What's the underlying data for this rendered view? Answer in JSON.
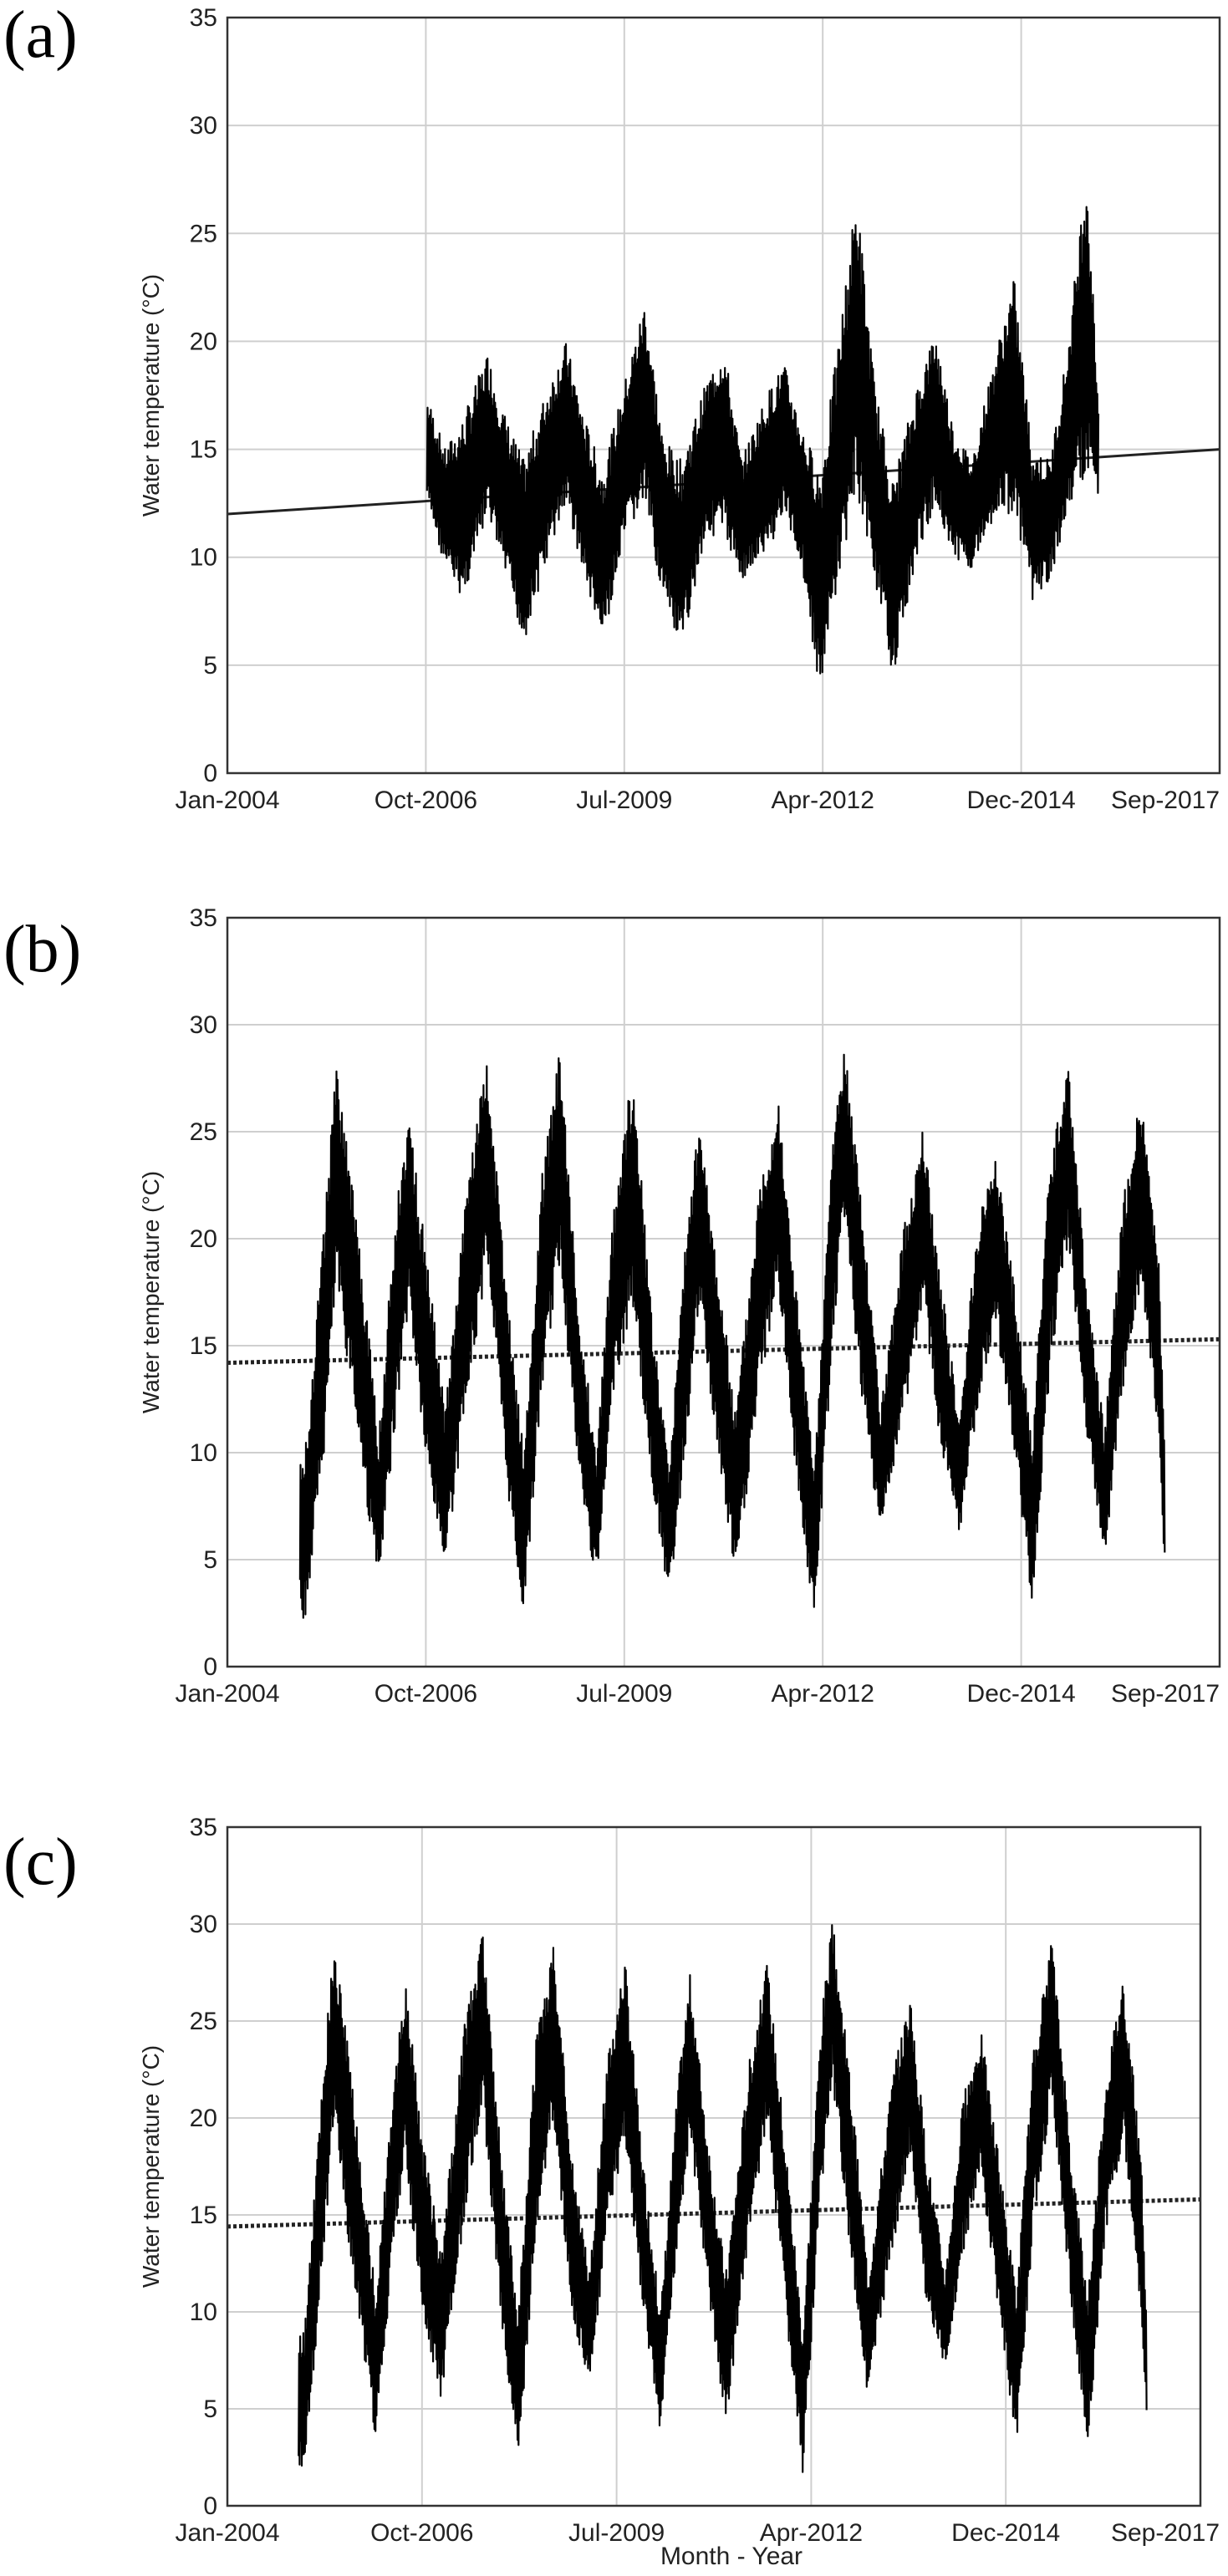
{
  "chart_data": [
    {
      "type": "scatter",
      "panel_label": "(a)",
      "ylabel": "Water temperature (°C)",
      "xlabel": "",
      "ylim": [
        0,
        35
      ],
      "yticks": [
        "0",
        "5",
        "10",
        "15",
        "20",
        "25",
        "30",
        "35"
      ],
      "xlim": [
        "2004-01",
        "2017-09"
      ],
      "xticks": [
        "Jan-2004",
        "Oct-2006",
        "Jul-2009",
        "Apr-2012",
        "Dec-2014",
        "Sep-2017"
      ],
      "grid": true,
      "trend": {
        "start": [
          "2004-01",
          12.0
        ],
        "end": [
          "2017-09",
          15.0
        ]
      },
      "series": [
        {
          "x_start": "2006-10",
          "x_end": "2016-01",
          "observations": [
            {
              "date": "2006-10",
              "min": 12.5,
              "max": 17.5
            },
            {
              "date": "2007-01",
              "min": 9.5,
              "max": 15.0
            },
            {
              "date": "2007-04",
              "min": 8.0,
              "max": 16.5
            },
            {
              "date": "2007-08",
              "min": 12.0,
              "max": 19.5
            },
            {
              "date": "2007-11",
              "min": 9.0,
              "max": 16.5
            },
            {
              "date": "2008-02",
              "min": 6.0,
              "max": 14.5
            },
            {
              "date": "2008-06",
              "min": 10.0,
              "max": 18.0
            },
            {
              "date": "2008-09",
              "min": 12.5,
              "max": 20.0
            },
            {
              "date": "2008-12",
              "min": 9.0,
              "max": 16.5
            },
            {
              "date": "2009-03",
              "min": 6.0,
              "max": 14.0
            },
            {
              "date": "2009-07",
              "min": 11.0,
              "max": 18.5
            },
            {
              "date": "2009-10",
              "min": 12.5,
              "max": 22.0
            },
            {
              "date": "2010-01",
              "min": 8.0,
              "max": 15.5
            },
            {
              "date": "2010-04",
              "min": 5.5,
              "max": 14.5
            },
            {
              "date": "2010-08",
              "min": 11.0,
              "max": 18.0
            },
            {
              "date": "2010-11",
              "min": 11.0,
              "max": 20.0
            },
            {
              "date": "2011-02",
              "min": 9.0,
              "max": 14.5
            },
            {
              "date": "2011-06",
              "min": 10.0,
              "max": 17.5
            },
            {
              "date": "2011-09",
              "min": 12.0,
              "max": 19.0
            },
            {
              "date": "2011-12",
              "min": 9.5,
              "max": 16.0
            },
            {
              "date": "2012-03",
              "min": 3.5,
              "max": 14.0
            },
            {
              "date": "2012-06",
              "min": 9.0,
              "max": 20.0
            },
            {
              "date": "2012-09",
              "min": 13.0,
              "max": 27.0
            },
            {
              "date": "2012-12",
              "min": 9.0,
              "max": 18.0
            },
            {
              "date": "2013-03",
              "min": 4.5,
              "max": 13.5
            },
            {
              "date": "2013-07",
              "min": 10.0,
              "max": 18.0
            },
            {
              "date": "2013-10",
              "min": 12.5,
              "max": 20.5
            },
            {
              "date": "2014-01",
              "min": 10.0,
              "max": 16.0
            },
            {
              "date": "2014-04",
              "min": 9.5,
              "max": 14.5
            },
            {
              "date": "2014-08",
              "min": 12.0,
              "max": 19.5
            },
            {
              "date": "2014-11",
              "min": 12.0,
              "max": 23.0
            },
            {
              "date": "2015-02",
              "min": 8.0,
              "max": 15.0
            },
            {
              "date": "2015-05",
              "min": 9.0,
              "max": 14.5
            },
            {
              "date": "2015-08",
              "min": 12.0,
              "max": 20.0
            },
            {
              "date": "2015-11",
              "min": 14.0,
              "max": 28.5
            },
            {
              "date": "2016-01",
              "min": 12.5,
              "max": 17.0
            }
          ]
        }
      ]
    },
    {
      "type": "scatter",
      "panel_label": "(b)",
      "ylabel": "Water temperature (°C)",
      "xlabel": "",
      "ylim": [
        0,
        35
      ],
      "yticks": [
        "0",
        "5",
        "10",
        "15",
        "20",
        "25",
        "30",
        "35"
      ],
      "xlim": [
        "2004-01",
        "2017-09"
      ],
      "xticks": [
        "Jan-2004",
        "Oct-2006",
        "Jul-2009",
        "Apr-2012",
        "Dec-2014",
        "Sep-2017"
      ],
      "grid": true,
      "trend": {
        "start": [
          "2004-01",
          14.2
        ],
        "end": [
          "2017-09",
          15.3
        ]
      },
      "series": [
        {
          "x_start": "2005-01",
          "x_end": "2016-12",
          "observations": [
            {
              "date": "2005-02",
              "min": 2.2,
              "max": 10.5
            },
            {
              "date": "2005-05",
              "min": 10.0,
              "max": 21.0
            },
            {
              "date": "2005-07",
              "min": 18.0,
              "max": 28.0
            },
            {
              "date": "2005-10",
              "min": 12.0,
              "max": 22.0
            },
            {
              "date": "2006-02",
              "min": 3.5,
              "max": 11.0
            },
            {
              "date": "2006-05",
              "min": 12.0,
              "max": 22.0
            },
            {
              "date": "2006-07",
              "min": 17.0,
              "max": 26.0
            },
            {
              "date": "2006-10",
              "min": 9.0,
              "max": 19.0
            },
            {
              "date": "2007-01",
              "min": 4.8,
              "max": 12.0
            },
            {
              "date": "2007-05",
              "min": 13.0,
              "max": 24.0
            },
            {
              "date": "2007-08",
              "min": 19.0,
              "max": 28.5
            },
            {
              "date": "2007-11",
              "min": 9.0,
              "max": 18.0
            },
            {
              "date": "2008-02",
              "min": 2.3,
              "max": 10.0
            },
            {
              "date": "2008-05",
              "min": 13.0,
              "max": 23.0
            },
            {
              "date": "2008-08",
              "min": 19.0,
              "max": 29.0
            },
            {
              "date": "2008-11",
              "min": 9.0,
              "max": 17.0
            },
            {
              "date": "2009-02",
              "min": 3.8,
              "max": 10.0
            },
            {
              "date": "2009-05",
              "min": 13.0,
              "max": 22.0
            },
            {
              "date": "2009-08",
              "min": 17.0,
              "max": 28.0
            },
            {
              "date": "2009-11",
              "min": 9.0,
              "max": 17.0
            },
            {
              "date": "2010-02",
              "min": 3.0,
              "max": 9.5
            },
            {
              "date": "2010-05",
              "min": 11.0,
              "max": 21.0
            },
            {
              "date": "2010-07",
              "min": 17.0,
              "max": 25.5
            },
            {
              "date": "2010-10",
              "min": 10.0,
              "max": 19.0
            },
            {
              "date": "2011-01",
              "min": 4.0,
              "max": 12.0
            },
            {
              "date": "2011-05",
              "min": 13.0,
              "max": 23.0
            },
            {
              "date": "2011-08",
              "min": 18.0,
              "max": 26.5
            },
            {
              "date": "2011-11",
              "min": 9.0,
              "max": 18.0
            },
            {
              "date": "2012-02",
              "min": 2.0,
              "max": 9.0
            },
            {
              "date": "2012-05",
              "min": 15.0,
              "max": 25.0
            },
            {
              "date": "2012-07",
              "min": 21.0,
              "max": 29.3
            },
            {
              "date": "2012-10",
              "min": 12.0,
              "max": 21.0
            },
            {
              "date": "2013-01",
              "min": 6.0,
              "max": 12.0
            },
            {
              "date": "2013-05",
              "min": 12.0,
              "max": 21.0
            },
            {
              "date": "2013-08",
              "min": 17.0,
              "max": 25.3
            },
            {
              "date": "2013-11",
              "min": 10.0,
              "max": 18.0
            },
            {
              "date": "2014-02",
              "min": 6.0,
              "max": 11.5
            },
            {
              "date": "2014-05",
              "min": 12.0,
              "max": 21.0
            },
            {
              "date": "2014-08",
              "min": 16.0,
              "max": 24.3
            },
            {
              "date": "2014-11",
              "min": 10.0,
              "max": 18.0
            },
            {
              "date": "2015-02",
              "min": 3.0,
              "max": 10.5
            },
            {
              "date": "2015-05",
              "min": 14.0,
              "max": 24.0
            },
            {
              "date": "2015-08",
              "min": 20.0,
              "max": 28.3
            },
            {
              "date": "2015-11",
              "min": 11.0,
              "max": 18.0
            },
            {
              "date": "2016-02",
              "min": 4.5,
              "max": 11.0
            },
            {
              "date": "2016-05",
              "min": 13.0,
              "max": 22.0
            },
            {
              "date": "2016-08",
              "min": 18.0,
              "max": 26.8
            },
            {
              "date": "2016-11",
              "min": 10.0,
              "max": 19.0
            },
            {
              "date": "2016-12",
              "min": 4.2,
              "max": 9.0
            }
          ]
        }
      ]
    },
    {
      "type": "scatter",
      "panel_label": "(c)",
      "ylabel": "Water temperature (°C)",
      "xlabel": "Month - Year",
      "ylim": [
        0,
        35
      ],
      "yticks": [
        "0",
        "5",
        "10",
        "15",
        "20",
        "25",
        "30",
        "35"
      ],
      "xlim": [
        "2004-01",
        "2017-09"
      ],
      "xticks": [
        "Jan-2004",
        "Oct-2006",
        "Jul-2009",
        "Apr-2012",
        "Dec-2014",
        "Sep-2017"
      ],
      "grid": true,
      "trend": {
        "start": [
          "2004-01",
          14.4
        ],
        "end": [
          "2017-09",
          15.8
        ]
      },
      "series": [
        {
          "x_start": "2005-01",
          "x_end": "2016-12",
          "observations": [
            {
              "date": "2005-02",
              "min": 1.8,
              "max": 9.0
            },
            {
              "date": "2005-05",
              "min": 12.0,
              "max": 22.0
            },
            {
              "date": "2005-07",
              "min": 20.0,
              "max": 29.3
            },
            {
              "date": "2005-10",
              "min": 12.0,
              "max": 22.0
            },
            {
              "date": "2006-02",
              "min": 3.2,
              "max": 11.0
            },
            {
              "date": "2006-05",
              "min": 13.0,
              "max": 22.0
            },
            {
              "date": "2006-07",
              "min": 18.0,
              "max": 27.2
            },
            {
              "date": "2006-10",
              "min": 9.0,
              "max": 19.0
            },
            {
              "date": "2007-01",
              "min": 5.5,
              "max": 13.0
            },
            {
              "date": "2007-05",
              "min": 15.0,
              "max": 25.0
            },
            {
              "date": "2007-08",
              "min": 21.0,
              "max": 29.7
            },
            {
              "date": "2007-11",
              "min": 10.0,
              "max": 19.0
            },
            {
              "date": "2008-02",
              "min": 2.2,
              "max": 10.0
            },
            {
              "date": "2008-05",
              "min": 14.0,
              "max": 24.0
            },
            {
              "date": "2008-08",
              "min": 20.0,
              "max": 29.2
            },
            {
              "date": "2008-11",
              "min": 10.0,
              "max": 18.0
            },
            {
              "date": "2009-02",
              "min": 6.0,
              "max": 12.0
            },
            {
              "date": "2009-05",
              "min": 14.0,
              "max": 23.0
            },
            {
              "date": "2009-08",
              "min": 19.0,
              "max": 28.3
            },
            {
              "date": "2009-11",
              "min": 10.0,
              "max": 18.0
            },
            {
              "date": "2010-02",
              "min": 3.8,
              "max": 10.0
            },
            {
              "date": "2010-05",
              "min": 14.0,
              "max": 22.0
            },
            {
              "date": "2010-07",
              "min": 19.0,
              "max": 27.5
            },
            {
              "date": "2010-10",
              "min": 11.0,
              "max": 19.0
            },
            {
              "date": "2011-01",
              "min": 4.0,
              "max": 12.0
            },
            {
              "date": "2011-05",
              "min": 14.0,
              "max": 23.0
            },
            {
              "date": "2011-08",
              "min": 20.0,
              "max": 28.0
            },
            {
              "date": "2011-11",
              "min": 10.0,
              "max": 19.0
            },
            {
              "date": "2012-02",
              "min": 1.6,
              "max": 9.0
            },
            {
              "date": "2012-05",
              "min": 16.0,
              "max": 25.0
            },
            {
              "date": "2012-07",
              "min": 22.0,
              "max": 30.2
            },
            {
              "date": "2012-10",
              "min": 13.0,
              "max": 22.0
            },
            {
              "date": "2013-01",
              "min": 5.5,
              "max": 12.0
            },
            {
              "date": "2013-05",
              "min": 13.0,
              "max": 22.0
            },
            {
              "date": "2013-08",
              "min": 18.0,
              "max": 26.3
            },
            {
              "date": "2013-11",
              "min": 10.0,
              "max": 18.0
            },
            {
              "date": "2014-02",
              "min": 7.0,
              "max": 12.0
            },
            {
              "date": "2014-05",
              "min": 13.0,
              "max": 21.0
            },
            {
              "date": "2014-08",
              "min": 17.0,
              "max": 24.6
            },
            {
              "date": "2014-11",
              "min": 10.0,
              "max": 18.0
            },
            {
              "date": "2015-02",
              "min": 3.0,
              "max": 11.0
            },
            {
              "date": "2015-05",
              "min": 15.0,
              "max": 24.0
            },
            {
              "date": "2015-08",
              "min": 21.0,
              "max": 29.2
            },
            {
              "date": "2015-11",
              "min": 11.0,
              "max": 19.0
            },
            {
              "date": "2016-02",
              "min": 3.0,
              "max": 11.0
            },
            {
              "date": "2016-05",
              "min": 14.0,
              "max": 22.0
            },
            {
              "date": "2016-08",
              "min": 19.0,
              "max": 27.5
            },
            {
              "date": "2016-11",
              "min": 10.0,
              "max": 18.0
            },
            {
              "date": "2016-12",
              "min": 4.2,
              "max": 9.0
            }
          ]
        }
      ]
    }
  ]
}
